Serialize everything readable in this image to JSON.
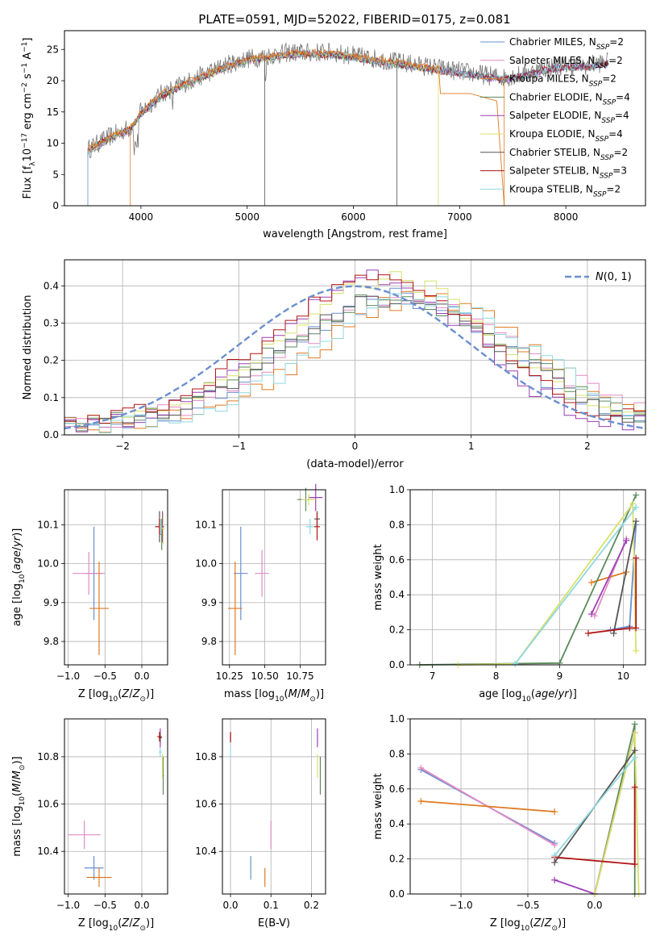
{
  "figure_title": "PLATE=0591, MJD=52022, FIBERID=0175, z=0.081",
  "colors": {
    "series": [
      "#6a8fd0",
      "#e28ac4",
      "#e07a22",
      "#5a8a5a",
      "#9b3fb5",
      "#d8e06a",
      "#555555",
      "#b01515",
      "#8fd8e0"
    ],
    "normal_curve": "#6a8fd0",
    "grid": "#b0b0b0"
  },
  "chart_data": [
    {
      "id": "spectrum",
      "type": "line",
      "title": "",
      "xlabel": "wavelength [Angstrom, rest frame]",
      "ylabel": "Flux [f_λ10^-17 erg cm^-2 s^-1 A^-1]",
      "xlim": [
        3280,
        8750
      ],
      "ylim": [
        0,
        28
      ],
      "xticks": [
        4000,
        5000,
        6000,
        7000,
        8000
      ],
      "yticks": [
        0,
        5,
        10,
        15,
        20,
        25
      ],
      "grid": false,
      "legend_placement": "top-right",
      "legend": [
        "Chabrier MILES, N_SSP=2",
        "Salpeter MILES, N_SSP=2",
        "Kroupa MILES, N_SSP=2",
        "Chabrier ELODIE, N_SSP=4",
        "Salpeter ELODIE, N_SSP=4",
        "Kroupa ELODIE, N_SSP=4",
        "Chabrier STELIB, N_SSP=2",
        "Salpeter STELIB, N_SSP=3",
        "Kroupa STELIB, N_SSP=2"
      ],
      "continuum": {
        "x": [
          3500,
          3700,
          3900,
          4000,
          4200,
          4400,
          4600,
          4800,
          5000,
          5200,
          5400,
          5600,
          5800,
          6000,
          6200,
          6400,
          6600,
          6800,
          7000,
          7200,
          7400,
          7600,
          7800,
          8000,
          8200,
          8400
        ],
        "y": [
          9,
          11,
          12.5,
          15,
          18,
          19.5,
          21,
          22.5,
          23.5,
          24,
          24.5,
          24.5,
          24.5,
          24,
          23.5,
          23,
          22.5,
          22,
          21.5,
          21,
          20.5,
          21,
          22,
          22.5,
          22.5,
          23
        ]
      },
      "kroupa_miles_tail": {
        "x": [
          6800,
          6820,
          7100,
          7350,
          7420
        ],
        "y": [
          22.5,
          18,
          17.5,
          17,
          0
        ]
      }
    },
    {
      "id": "residuals",
      "type": "line",
      "title": "",
      "xlabel": "(data-model)/error",
      "ylabel": "Normed distribution",
      "xlim": [
        -2.5,
        2.5
      ],
      "ylim": [
        0,
        0.47
      ],
      "xticks": [
        -2,
        -1,
        0,
        1,
        2
      ],
      "yticks": [
        0.0,
        0.1,
        0.2,
        0.3,
        0.4
      ],
      "grid": true,
      "legend_placement": "top-right",
      "normal_legend_label": "N(0,1)",
      "hist_centers": [
        {
          "mu": 0.45,
          "sigma": 0.92,
          "peak": 0.35
        },
        {
          "mu": 0.15,
          "sigma": 0.85,
          "peak": 0.4
        },
        {
          "mu": 0.7,
          "sigma": 1.0,
          "peak": 0.34
        }
      ]
    },
    {
      "id": "age_vs_Z",
      "type": "scatter",
      "xlabel": "Z [log10(Z/Z⊙)]",
      "ylabel": "age [log10(age/yr)]",
      "xlim": [
        -1.05,
        0.35
      ],
      "ylim": [
        9.74,
        10.19
      ],
      "xticks": [
        -1.0,
        -0.5,
        0.0
      ],
      "xtick_labels": [
        "−1.0",
        "−0.5",
        "0.0"
      ],
      "yticks": [
        9.8,
        9.9,
        10.0,
        10.1
      ],
      "grid": true,
      "points": [
        {
          "x": -0.65,
          "y": 9.975,
          "xerr": 0.12,
          "yerr": 0.12,
          "c": 0
        },
        {
          "x": -0.72,
          "y": 9.975,
          "xerr": 0.22,
          "yerr": 0.055,
          "c": 1
        },
        {
          "x": -0.58,
          "y": 9.885,
          "xerr": 0.13,
          "yerr": 0.12,
          "c": 2
        },
        {
          "x": 0.27,
          "y": 10.075,
          "xerr": 0.02,
          "yerr": 0.04,
          "c": 3
        },
        {
          "x": 0.28,
          "y": 10.095,
          "xerr": 0.02,
          "yerr": 0.04,
          "c": 4
        },
        {
          "x": 0.29,
          "y": 10.09,
          "xerr": 0.02,
          "yerr": 0.04,
          "c": 5
        },
        {
          "x": 0.24,
          "y": 10.095,
          "xerr": 0.02,
          "yerr": 0.04,
          "c": 6
        },
        {
          "x": 0.24,
          "y": 10.095,
          "xerr": 0.06,
          "yerr": 0.02,
          "c": 7
        },
        {
          "x": 0.26,
          "y": 10.095,
          "xerr": 0.02,
          "yerr": 0.02,
          "c": 8
        }
      ]
    },
    {
      "id": "age_vs_mass",
      "type": "scatter",
      "xlabel": "mass [log10(M/M⊙)]",
      "ylabel": "",
      "xlim": [
        10.2,
        10.93
      ],
      "ylim": [
        9.74,
        10.19
      ],
      "xticks": [
        10.25,
        10.5,
        10.75
      ],
      "xtick_labels": [
        "10.25",
        "10.50",
        "10.75"
      ],
      "yticks": [
        9.8,
        9.9,
        10.0,
        10.1
      ],
      "grid": true,
      "points": [
        {
          "x": 10.33,
          "y": 9.975,
          "xerr": 0.05,
          "yerr": 0.12,
          "c": 0
        },
        {
          "x": 10.48,
          "y": 9.975,
          "xerr": 0.05,
          "yerr": 0.06,
          "c": 1
        },
        {
          "x": 10.29,
          "y": 9.885,
          "xerr": 0.05,
          "yerr": 0.12,
          "c": 2
        },
        {
          "x": 10.79,
          "y": 10.165,
          "xerr": 0.06,
          "yerr": 0.03,
          "c": 3
        },
        {
          "x": 10.86,
          "y": 10.17,
          "xerr": 0.05,
          "yerr": 0.035,
          "c": 4
        },
        {
          "x": 10.81,
          "y": 10.165,
          "xerr": 0.05,
          "yerr": 0.015,
          "c": 5
        },
        {
          "x": 10.87,
          "y": 10.115,
          "xerr": 0.02,
          "yerr": 0.02,
          "c": 6
        },
        {
          "x": 10.87,
          "y": 10.095,
          "xerr": 0.02,
          "yerr": 0.035,
          "c": 7
        },
        {
          "x": 10.82,
          "y": 10.095,
          "xerr": 0.03,
          "yerr": 0.02,
          "c": 8
        }
      ]
    },
    {
      "id": "weight_vs_age",
      "type": "line",
      "xlabel": "age [log10(age/yr)]",
      "ylabel": "mass weight",
      "xlim": [
        6.65,
        10.35
      ],
      "ylim": [
        0,
        1.0
      ],
      "xticks": [
        7,
        8,
        9,
        10
      ],
      "yticks": [
        0.0,
        0.2,
        0.4,
        0.6,
        0.8,
        1.0
      ],
      "grid": true,
      "series": [
        {
          "c": 0,
          "x": [
            9.8,
            10.1,
            10.2
          ],
          "y": [
            0.2,
            0.22,
            0.8
          ]
        },
        {
          "c": 1,
          "x": [
            9.55,
            10.05
          ],
          "y": [
            0.28,
            0.72
          ]
        },
        {
          "c": 2,
          "x": [
            9.5,
            10.05
          ],
          "y": [
            0.47,
            0.53
          ]
        },
        {
          "c": 3,
          "x": [
            6.8,
            9.0,
            10.2
          ],
          "y": [
            0.0,
            0.01,
            0.97
          ]
        },
        {
          "c": 4,
          "x": [
            9.5,
            10.05
          ],
          "y": [
            0.29,
            0.71
          ]
        },
        {
          "c": 5,
          "x": [
            7.4,
            8.3,
            10.15,
            10.2
          ],
          "y": [
            0.0,
            0.005,
            0.92,
            0.08
          ]
        },
        {
          "c": 6,
          "x": [
            9.85,
            10.2
          ],
          "y": [
            0.18,
            0.82
          ]
        },
        {
          "c": 7,
          "x": [
            9.45,
            10.1,
            10.2,
            10.2
          ],
          "y": [
            0.18,
            0.21,
            0.21,
            0.61
          ]
        },
        {
          "c": 8,
          "x": [
            8.3,
            10.2
          ],
          "y": [
            0.005,
            0.9
          ]
        }
      ]
    },
    {
      "id": "mass_vs_Z",
      "type": "scatter",
      "xlabel": "Z [log10(Z/Z⊙)]",
      "ylabel": "mass [log10(M/M⊙)]",
      "xlim": [
        -1.05,
        0.35
      ],
      "ylim": [
        10.22,
        10.96
      ],
      "xticks": [
        -1.0,
        -0.5,
        0.0
      ],
      "xtick_labels": [
        "−1.0",
        "−0.5",
        "0.0"
      ],
      "yticks": [
        10.4,
        10.6,
        10.8
      ],
      "grid": true,
      "points": [
        {
          "x": -0.65,
          "y": 10.33,
          "xerr": 0.13,
          "yerr": 0.05,
          "c": 0
        },
        {
          "x": -0.78,
          "y": 10.47,
          "xerr": 0.22,
          "yerr": 0.06,
          "c": 1
        },
        {
          "x": -0.58,
          "y": 10.29,
          "xerr": 0.17,
          "yerr": 0.04,
          "c": 2
        },
        {
          "x": 0.29,
          "y": 10.72,
          "xerr": 0.01,
          "yerr": 0.08,
          "c": 3
        },
        {
          "x": 0.25,
          "y": 10.88,
          "xerr": 0.02,
          "yerr": 0.04,
          "c": 4
        },
        {
          "x": 0.28,
          "y": 10.76,
          "xerr": 0.01,
          "yerr": 0.05,
          "c": 5
        },
        {
          "x": 0.25,
          "y": 10.88,
          "xerr": 0.02,
          "yerr": 0.02,
          "c": 6
        },
        {
          "x": 0.24,
          "y": 10.885,
          "xerr": 0.03,
          "yerr": 0.02,
          "c": 7
        },
        {
          "x": 0.25,
          "y": 10.82,
          "xerr": 0.02,
          "yerr": 0.02,
          "c": 8
        }
      ]
    },
    {
      "id": "mass_vs_ebv",
      "type": "scatter",
      "xlabel": "E(B-V)",
      "ylabel": "",
      "xlim": [
        -0.02,
        0.235
      ],
      "ylim": [
        10.22,
        10.96
      ],
      "xticks": [
        0.0,
        0.1,
        0.2
      ],
      "xtick_labels": [
        "0.0",
        "0.1",
        "0.2"
      ],
      "yticks": [
        10.4,
        10.6,
        10.8
      ],
      "grid": true,
      "points": [
        {
          "x": 0.05,
          "y": 10.33,
          "xerr": 0,
          "yerr": 0.05,
          "c": 0
        },
        {
          "x": 0.1,
          "y": 10.47,
          "xerr": 0,
          "yerr": 0.06,
          "c": 1
        },
        {
          "x": 0.085,
          "y": 10.29,
          "xerr": 0,
          "yerr": 0.04,
          "c": 2
        },
        {
          "x": 0.222,
          "y": 10.72,
          "xerr": 0,
          "yerr": 0.08,
          "c": 3
        },
        {
          "x": 0.215,
          "y": 10.88,
          "xerr": 0,
          "yerr": 0.04,
          "c": 4
        },
        {
          "x": 0.215,
          "y": 10.76,
          "xerr": 0,
          "yerr": 0.05,
          "c": 5
        },
        {
          "x": 0.0,
          "y": 10.88,
          "xerr": 0,
          "yerr": 0.02,
          "c": 6
        },
        {
          "x": 0.0,
          "y": 10.885,
          "xerr": 0,
          "yerr": 0.02,
          "c": 7
        },
        {
          "x": 0.0,
          "y": 10.82,
          "xerr": 0,
          "yerr": 0.02,
          "c": 8
        }
      ]
    },
    {
      "id": "weight_vs_Z",
      "type": "line",
      "xlabel": "Z [log10(Z/Z⊙)]",
      "ylabel": "mass weight",
      "xlim": [
        -1.38,
        0.38
      ],
      "ylim": [
        0,
        1.0
      ],
      "xticks": [
        -1.0,
        -0.5,
        0.0
      ],
      "xtick_labels": [
        "−1.0",
        "−0.5",
        "0.0"
      ],
      "yticks": [
        0.0,
        0.2,
        0.4,
        0.6,
        0.8,
        1.0
      ],
      "grid": true,
      "series": [
        {
          "c": 0,
          "x": [
            -1.3,
            -0.3
          ],
          "y": [
            0.71,
            0.29
          ]
        },
        {
          "c": 1,
          "x": [
            -1.3,
            -0.3
          ],
          "y": [
            0.72,
            0.28
          ]
        },
        {
          "c": 2,
          "x": [
            -1.3,
            -0.3
          ],
          "y": [
            0.53,
            0.47
          ]
        },
        {
          "c": 3,
          "x": [
            0.0,
            0.3,
            0.3
          ],
          "y": [
            0.0,
            0.97,
            0.0
          ]
        },
        {
          "c": 4,
          "x": [
            -0.3,
            0.0,
            0.3
          ],
          "y": [
            0.08,
            0.0,
            0.92
          ]
        },
        {
          "c": 5,
          "x": [
            0.0,
            0.3,
            0.33
          ],
          "y": [
            0.0,
            0.92,
            0.0
          ]
        },
        {
          "c": 6,
          "x": [
            -0.3,
            0.3
          ],
          "y": [
            0.18,
            0.82
          ]
        },
        {
          "c": 7,
          "x": [
            -0.3,
            0.3,
            0.3
          ],
          "y": [
            0.21,
            0.17,
            0.61
          ]
        },
        {
          "c": 8,
          "x": [
            -0.3,
            0.3
          ],
          "y": [
            0.22,
            0.78
          ]
        }
      ]
    }
  ]
}
